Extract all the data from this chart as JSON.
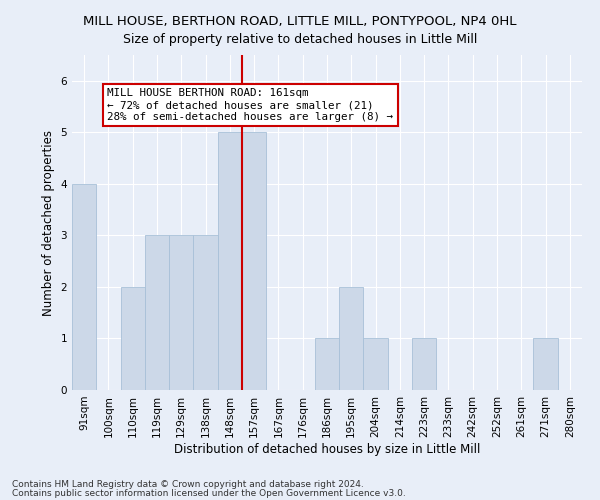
{
  "title": "MILL HOUSE, BERTHON ROAD, LITTLE MILL, PONTYPOOL, NP4 0HL",
  "subtitle": "Size of property relative to detached houses in Little Mill",
  "xlabel": "Distribution of detached houses by size in Little Mill",
  "ylabel": "Number of detached properties",
  "bin_labels": [
    "91sqm",
    "100sqm",
    "110sqm",
    "119sqm",
    "129sqm",
    "138sqm",
    "148sqm",
    "157sqm",
    "167sqm",
    "176sqm",
    "186sqm",
    "195sqm",
    "204sqm",
    "214sqm",
    "223sqm",
    "233sqm",
    "242sqm",
    "252sqm",
    "261sqm",
    "271sqm",
    "280sqm"
  ],
  "bar_heights": [
    4,
    0,
    2,
    3,
    3,
    3,
    5,
    5,
    0,
    0,
    1,
    2,
    1,
    0,
    1,
    0,
    0,
    0,
    0,
    1,
    0
  ],
  "bar_color": "#ccd8e8",
  "bar_edge_color": "#a8c0d8",
  "vline_x": 6.5,
  "vline_color": "#cc0000",
  "annotation_text": "MILL HOUSE BERTHON ROAD: 161sqm\n← 72% of detached houses are smaller (21)\n28% of semi-detached houses are larger (8) →",
  "annotation_box_color": "#ffffff",
  "annotation_border_color": "#cc0000",
  "ylim": [
    0,
    6.5
  ],
  "yticks": [
    0,
    1,
    2,
    3,
    4,
    5,
    6
  ],
  "footer_line1": "Contains HM Land Registry data © Crown copyright and database right 2024.",
  "footer_line2": "Contains public sector information licensed under the Open Government Licence v3.0.",
  "bg_color": "#e8eef8",
  "plot_bg_color": "#e8eef8",
  "grid_color": "#ffffff",
  "title_fontsize": 9.5,
  "subtitle_fontsize": 9,
  "axis_label_fontsize": 8.5,
  "tick_fontsize": 7.5,
  "annotation_fontsize": 7.8,
  "footer_fontsize": 6.5
}
